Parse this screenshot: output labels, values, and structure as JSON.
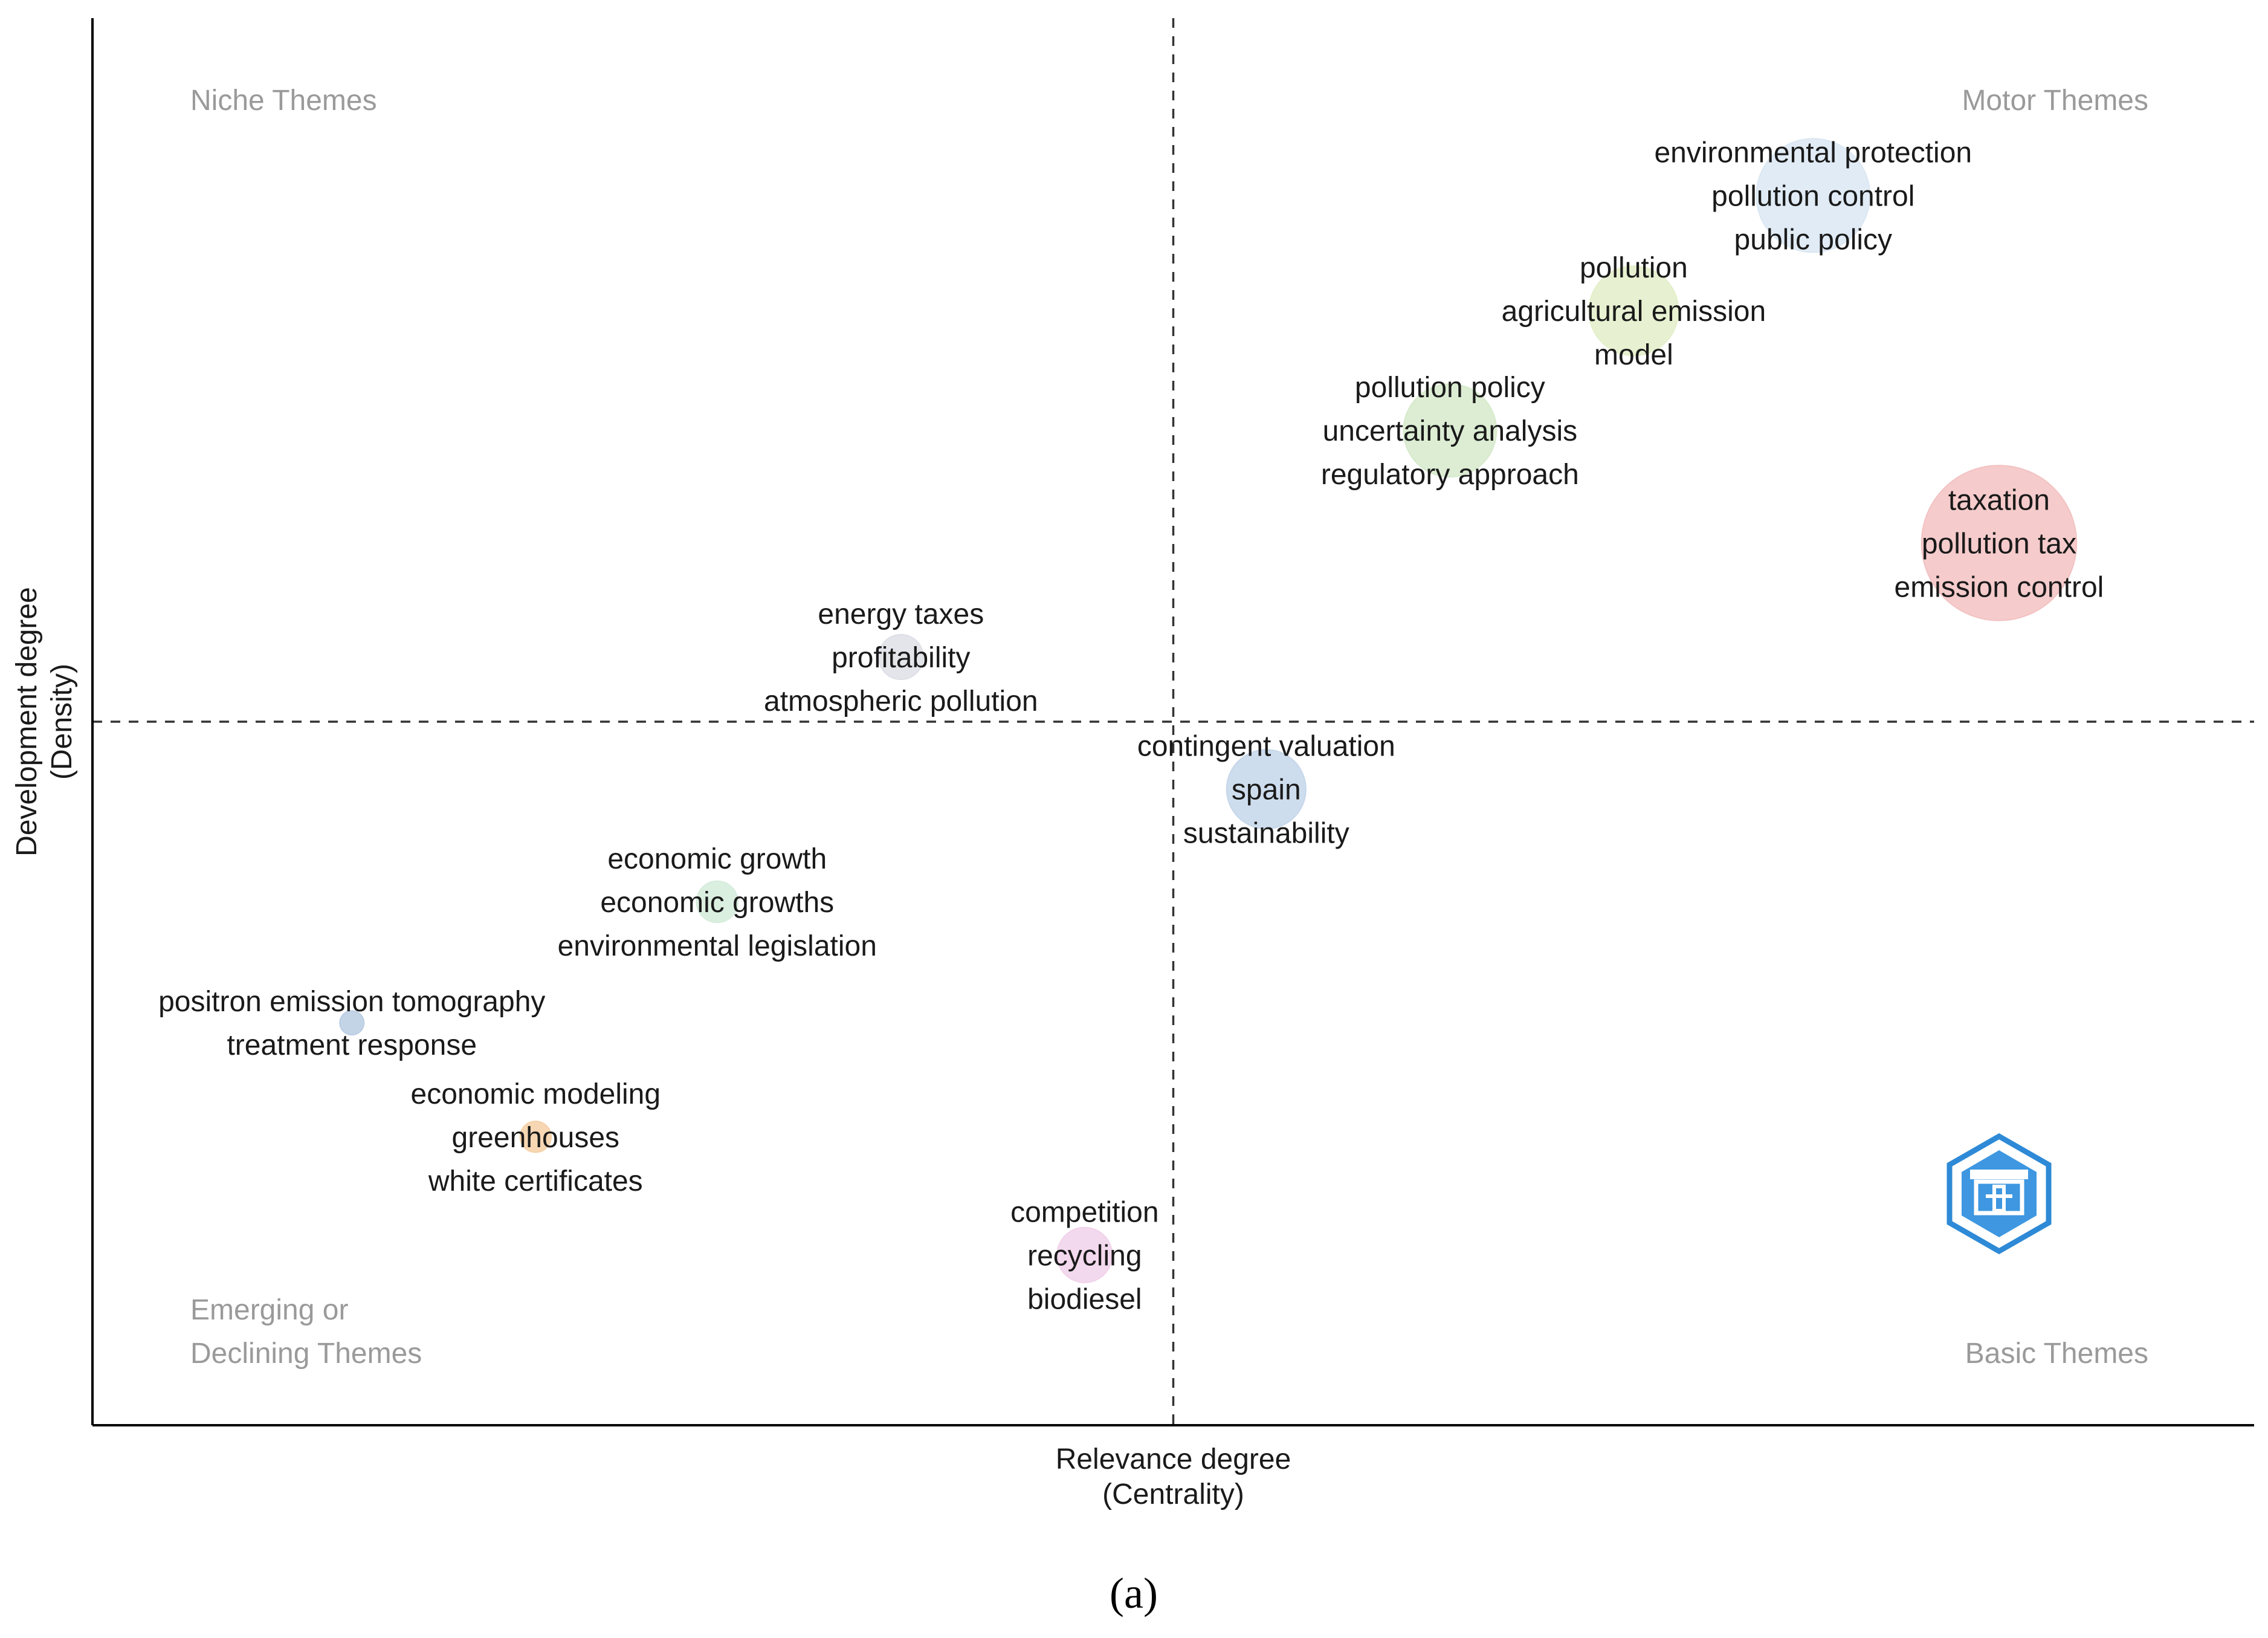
{
  "chart_data": {
    "type": "scatter",
    "title": "",
    "xlabel": [
      "Relevance degree",
      "(Centrality)"
    ],
    "ylabel": [
      "Development degree",
      "(Density)"
    ],
    "xlim": [
      0,
      100
    ],
    "ylim": [
      0,
      100
    ],
    "divider": {
      "x": 50,
      "y": 50
    },
    "quadrants": [
      {
        "name": "niche",
        "lines": [
          "Niche Themes"
        ],
        "position": "top-left"
      },
      {
        "name": "motor",
        "lines": [
          "Motor Themes"
        ],
        "position": "top-right"
      },
      {
        "name": "emerging",
        "lines": [
          "Emerging or",
          "Declining Themes"
        ],
        "position": "bottom-left"
      },
      {
        "name": "basic",
        "lines": [
          "Basic Themes"
        ],
        "position": "bottom-right"
      }
    ],
    "clusters": [
      {
        "labels": [
          "environmental protection",
          "pollution control",
          "public policy"
        ],
        "x": 79.6,
        "y": 87.4,
        "size": 33,
        "color": "#dbe7f3"
      },
      {
        "labels": [
          "pollution",
          "agricultural emission",
          "model"
        ],
        "x": 71.3,
        "y": 79.2,
        "size": 26,
        "color": "#e3efc9"
      },
      {
        "labels": [
          "pollution policy",
          "uncertainty analysis",
          "regulatory approach"
        ],
        "x": 62.8,
        "y": 70.7,
        "size": 27,
        "color": "#d6eacb"
      },
      {
        "labels": [
          "taxation",
          "pollution tax",
          "emission control"
        ],
        "x": 88.2,
        "y": 62.7,
        "size": 45,
        "color": "#f3c2c2"
      },
      {
        "labels": [
          "energy taxes",
          "profitability",
          "atmospheric pollution"
        ],
        "x": 37.4,
        "y": 54.6,
        "size": 13,
        "color": "#dfdfe7"
      },
      {
        "labels": [
          "contingent valuation",
          "spain",
          "sustainability"
        ],
        "x": 54.3,
        "y": 45.2,
        "size": 23,
        "color": "#c6d7ea"
      },
      {
        "labels": [
          "economic growth",
          "economic growths",
          "environmental legislation"
        ],
        "x": 28.9,
        "y": 37.2,
        "size": 12,
        "color": "#d5ecdc"
      },
      {
        "labels": [
          "positron emission tomography",
          "treatment response"
        ],
        "x": 12.0,
        "y": 28.6,
        "size": 7,
        "color": "#b9cde3"
      },
      {
        "labels": [
          "economic modeling",
          "greenhouses",
          "white certificates"
        ],
        "x": 20.5,
        "y": 20.5,
        "size": 9,
        "color": "#f6d0a6"
      },
      {
        "labels": [
          "competition",
          "recycling",
          "biodiesel"
        ],
        "x": 45.9,
        "y": 12.1,
        "size": 16,
        "color": "#f1d2ea"
      }
    ]
  },
  "caption": "(a)",
  "logo": {
    "name": "publisher-logo",
    "color": "#2e8ad6"
  }
}
